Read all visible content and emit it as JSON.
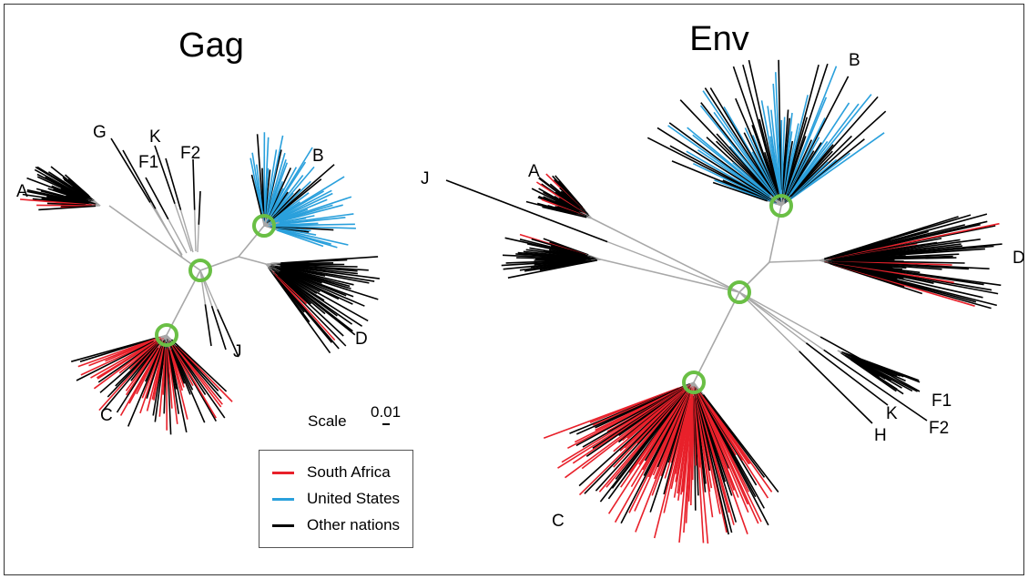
{
  "panels": [
    {
      "title": "Gag",
      "clades": [
        {
          "label": "A",
          "color": "#000000",
          "mix": [
            [
              "#000000",
              0.88
            ],
            [
              "#e8202a",
              0.12
            ]
          ]
        },
        {
          "label": "G",
          "color": "#000000"
        },
        {
          "label": "F1",
          "color": "#000000"
        },
        {
          "label": "K",
          "color": "#000000"
        },
        {
          "label": "F2",
          "color": "#000000"
        },
        {
          "label": "B",
          "color": "#2aa0dc",
          "mix": [
            [
              "#2aa0dc",
              0.75
            ],
            [
              "#000000",
              0.25
            ]
          ]
        },
        {
          "label": "D",
          "color": "#000000",
          "mix": [
            [
              "#000000",
              0.9
            ],
            [
              "#e8202a",
              0.1
            ]
          ]
        },
        {
          "label": "J",
          "color": "#000000"
        },
        {
          "label": "C",
          "color": "#e8202a",
          "mix": [
            [
              "#e8202a",
              0.55
            ],
            [
              "#000000",
              0.45
            ]
          ]
        }
      ]
    },
    {
      "title": "Env",
      "clades": [
        {
          "label": "B",
          "color": "#2aa0dc",
          "mix": [
            [
              "#000000",
              0.55
            ],
            [
              "#2aa0dc",
              0.45
            ]
          ]
        },
        {
          "label": "A",
          "color": "#000000",
          "mix": [
            [
              "#000000",
              0.93
            ],
            [
              "#e8202a",
              0.07
            ]
          ]
        },
        {
          "label": "J",
          "color": "#000000"
        },
        {
          "label": "D",
          "color": "#000000",
          "mix": [
            [
              "#000000",
              0.92
            ],
            [
              "#e8202a",
              0.08
            ]
          ]
        },
        {
          "label": "F1",
          "color": "#000000"
        },
        {
          "label": "K",
          "color": "#000000"
        },
        {
          "label": "F2",
          "color": "#000000"
        },
        {
          "label": "H",
          "color": "#000000"
        },
        {
          "label": "C",
          "color": "#e8202a",
          "mix": [
            [
              "#e8202a",
              0.6
            ],
            [
              "#000000",
              0.4
            ]
          ]
        }
      ]
    }
  ],
  "scale": {
    "label": "Scale",
    "value": "0.01"
  },
  "legend": [
    {
      "label": "South Africa",
      "color": "#e8202a"
    },
    {
      "label": "United States",
      "color": "#2aa0dc"
    },
    {
      "label": "Other nations",
      "color": "#000000"
    }
  ],
  "colors": {
    "internal_branch": "#a8a8a8",
    "root_marker": "#6abf45"
  }
}
